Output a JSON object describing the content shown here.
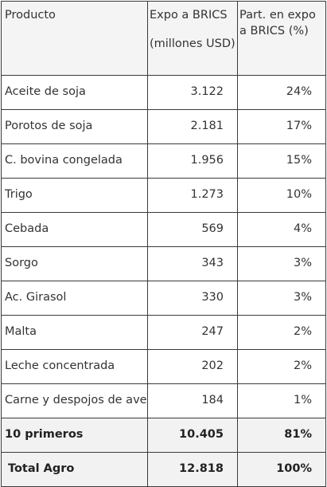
{
  "table": {
    "headers": {
      "product": "Producto",
      "expo_line1": "Expo a BRICS",
      "expo_line2": "(millones USD)",
      "share": "Part. en expo a BRICS (%)"
    },
    "rows": [
      {
        "product": "Aceite de soja",
        "expo": "3.122",
        "share": "24%"
      },
      {
        "product": "Porotos de soja",
        "expo": "2.181",
        "share": "17%"
      },
      {
        "product": "C. bovina congelada",
        "expo": "1.956",
        "share": "15%"
      },
      {
        "product": "Trigo",
        "expo": "1.273",
        "share": "10%"
      },
      {
        "product": "Cebada",
        "expo": "569",
        "share": "4%"
      },
      {
        "product": "Sorgo",
        "expo": "343",
        "share": "3%"
      },
      {
        "product": "Ac. Girasol",
        "expo": "330",
        "share": "3%"
      },
      {
        "product": "Malta",
        "expo": "247",
        "share": "2%"
      },
      {
        "product": "Leche concentrada",
        "expo": "202",
        "share": "2%"
      },
      {
        "product": "Carne y despojos de ave",
        "expo": "184",
        "share": "1%"
      }
    ],
    "totals": [
      {
        "product": "10 primeros",
        "expo": "10.405",
        "share": "81%"
      },
      {
        "product": "Total Agro",
        "expo": "12.818",
        "share": "100%"
      }
    ]
  }
}
